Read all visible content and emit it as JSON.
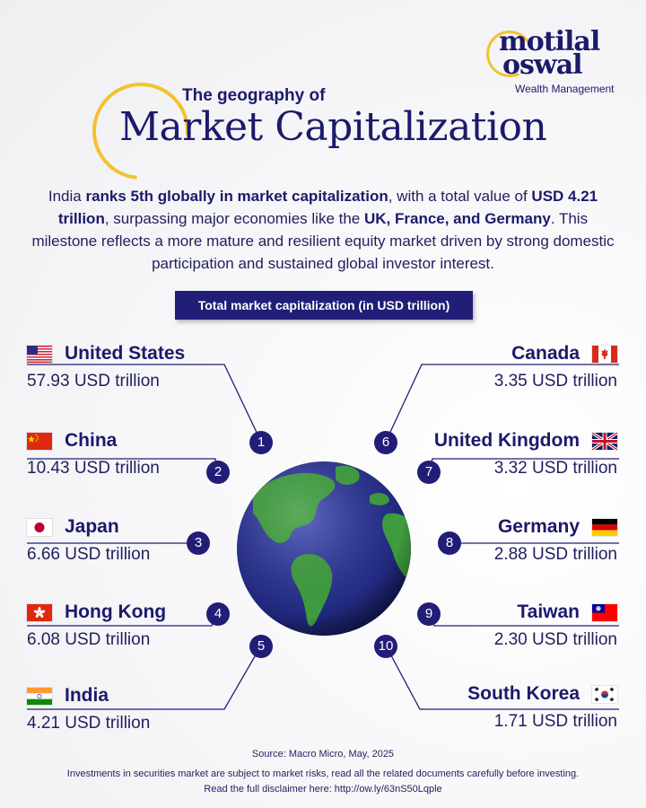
{
  "brand": {
    "line1": "motilal",
    "line2": "oswal",
    "tagline": "Wealth Management"
  },
  "header": {
    "subtitle": "The geography of",
    "title": "Market Capitalization"
  },
  "intro": {
    "s1": "India ",
    "b1": "ranks 5th globally in market capitalization",
    "s2": ", with a total value of ",
    "b2": "USD 4.21 trillion",
    "s3": ", surpassing major economies like the ",
    "b3": "UK, France, and Germany",
    "s4": ". This milestone reflects a more mature and resilient equity market driven by strong domestic participation and sustained global investor interest."
  },
  "colors": {
    "navy": "#221d76",
    "gold": "#f2c230",
    "globe_ocean": "#2b3490",
    "globe_land": "#3f9c3f"
  },
  "chart_data": {
    "type": "table",
    "title": "Total market capitalization (in USD trillion)",
    "unit": "USD trillion",
    "entries": [
      {
        "rank": "1",
        "country": "United States",
        "value": 57.93,
        "label": "57.93 USD trillion",
        "flag": "us-flag-icon"
      },
      {
        "rank": "2",
        "country": "China",
        "value": 10.43,
        "label": "10.43 USD trillion",
        "flag": "china-flag-icon"
      },
      {
        "rank": "3",
        "country": "Japan",
        "value": 6.66,
        "label": "6.66 USD trillion",
        "flag": "japan-flag-icon"
      },
      {
        "rank": "4",
        "country": "Hong Kong",
        "value": 6.08,
        "label": "6.08 USD trillion",
        "flag": "hong-kong-flag-icon"
      },
      {
        "rank": "5",
        "country": "India",
        "value": 4.21,
        "label": "4.21 USD trillion",
        "flag": "india-flag-icon"
      },
      {
        "rank": "6",
        "country": "Canada",
        "value": 3.35,
        "label": "3.35 USD trillion",
        "flag": "canada-flag-icon"
      },
      {
        "rank": "7",
        "country": "United Kingdom",
        "value": 3.32,
        "label": "3.32 USD trillion",
        "flag": "uk-flag-icon"
      },
      {
        "rank": "8",
        "country": "Germany",
        "value": 2.88,
        "label": "2.88 USD trillion",
        "flag": "germany-flag-icon"
      },
      {
        "rank": "9",
        "country": "Taiwan",
        "value": 2.3,
        "label": "2.30 USD trillion",
        "flag": "taiwan-flag-icon"
      },
      {
        "rank": "10",
        "country": "South Korea",
        "value": 1.71,
        "label": "1.71 USD trillion",
        "flag": "south-korea-flag-icon"
      }
    ]
  },
  "footer": {
    "source": "Source: Macro Micro, May, 2025",
    "disclaimer1": "Investments in securities market are subject to market risks, read all the related documents carefully before investing.",
    "disclaimer2": "Read the full disclaimer here: http://ow.ly/63nS50Lqple"
  }
}
